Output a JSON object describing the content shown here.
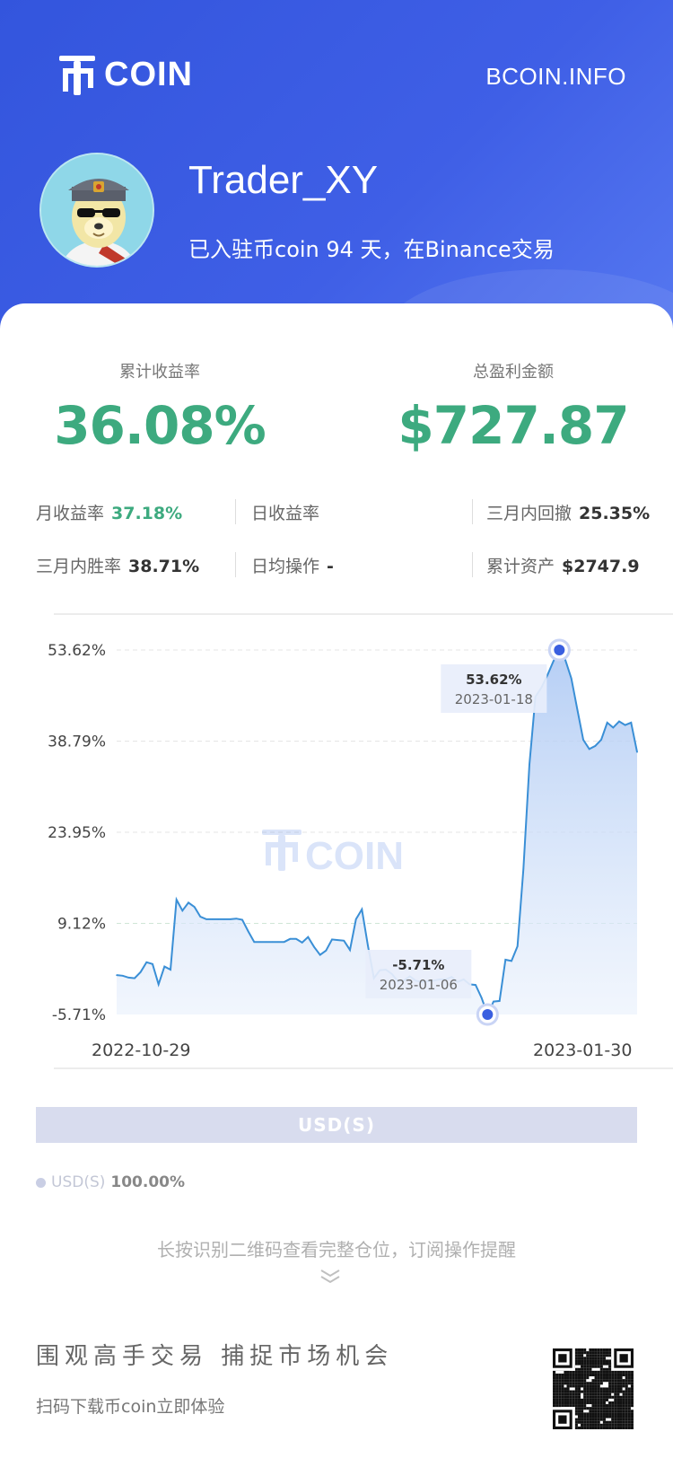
{
  "header": {
    "logo_text": "COIN",
    "site": "BCOIN.INFO",
    "username": "Trader_XY",
    "joined": "已入驻币coin 94 天，在Binance交易"
  },
  "summary": {
    "cum_return_label": "累计收益率",
    "cum_return_value": "36.08%",
    "total_pnl_label": "总盈利金额",
    "total_pnl_value": "$727.87"
  },
  "metrics": {
    "monthly_label": "月收益率",
    "monthly_value": "37.18%",
    "daily_label": "日收益率",
    "drawdown_label": "三月内回撤",
    "drawdown_value": "25.35%",
    "winrate_label": "三月内胜率",
    "winrate_value": "38.71%",
    "daily_ops_label": "日均操作",
    "daily_ops_value": "-",
    "assets_label": "累计资产",
    "assets_value": "$2747.9"
  },
  "chart_data": {
    "type": "area",
    "y_ticks": [
      "53.62%",
      "38.79%",
      "23.95%",
      "9.12%",
      "-5.71%"
    ],
    "x_labels": [
      "2022-10-29",
      "2023-01-30"
    ],
    "ylim": [
      -5.71,
      53.62
    ],
    "watermark": "COIN",
    "color": "#3a8fd6",
    "values": [
      0.7,
      0.6,
      0.3,
      0.2,
      1.2,
      2.8,
      2.5,
      -0.8,
      2.1,
      1.6,
      13.0,
      11.2,
      12.5,
      11.8,
      10.2,
      9.8,
      9.8,
      9.8,
      9.8,
      9.8,
      9.9,
      9.7,
      7.8,
      6.1,
      6.1,
      6.1,
      6.1,
      6.1,
      6.1,
      6.6,
      6.6,
      6.0,
      6.9,
      5.3,
      4.0,
      4.7,
      6.5,
      6.4,
      6.3,
      4.8,
      9.8,
      11.4,
      5.5,
      0.2,
      1.5,
      1.6,
      0.9,
      -0.3,
      -0.2,
      0.5,
      -0.2,
      -0.4,
      -0.3,
      -0.2,
      0.0,
      0.0,
      0.4,
      -0.4,
      0.0,
      -0.8,
      -0.9,
      -3.0,
      -5.71,
      -3.6,
      -3.5,
      3.2,
      3.0,
      5.4,
      18.0,
      35.0,
      46.0,
      47.5,
      49.5,
      51.8,
      53.62,
      52.0,
      49.0,
      44.0,
      39.0,
      37.5,
      38.0,
      39.0,
      41.8,
      41.0,
      42.0,
      41.4,
      41.8,
      37.0
    ],
    "annotations": [
      {
        "label": "53.62%",
        "date": "2023-01-18"
      },
      {
        "label": "-5.71%",
        "date": "2023-01-06"
      }
    ]
  },
  "assets": {
    "bar_label": "USD(S)",
    "legend_name": "USD(S)",
    "legend_pct": "100.00%"
  },
  "footer": {
    "hint": "长按识别二维码查看完整仓位，订阅操作提醒",
    "slogan": "围观高手交易 捕捉市场机会",
    "download": "扫码下载币coin立即体验"
  }
}
